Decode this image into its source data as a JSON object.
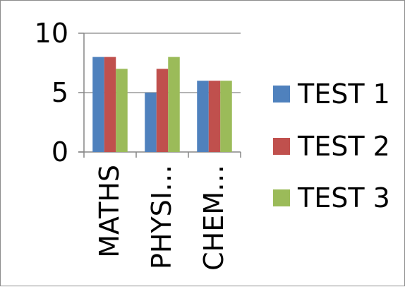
{
  "chart_data": {
    "type": "bar",
    "categories": [
      "MATHS",
      "PHYSI…",
      "CHEM…"
    ],
    "series": [
      {
        "name": "TEST 1",
        "values": [
          8,
          5,
          6
        ]
      },
      {
        "name": "TEST 2",
        "values": [
          8,
          7,
          6
        ]
      },
      {
        "name": "TEST 3",
        "values": [
          7,
          8,
          6
        ]
      }
    ],
    "ylim": [
      0,
      10
    ],
    "yticks": [
      "0",
      "5",
      "10"
    ],
    "grid": true,
    "legend_position": "right",
    "colors": [
      "#4f81bd",
      "#c0504d",
      "#9bbb59"
    ]
  }
}
